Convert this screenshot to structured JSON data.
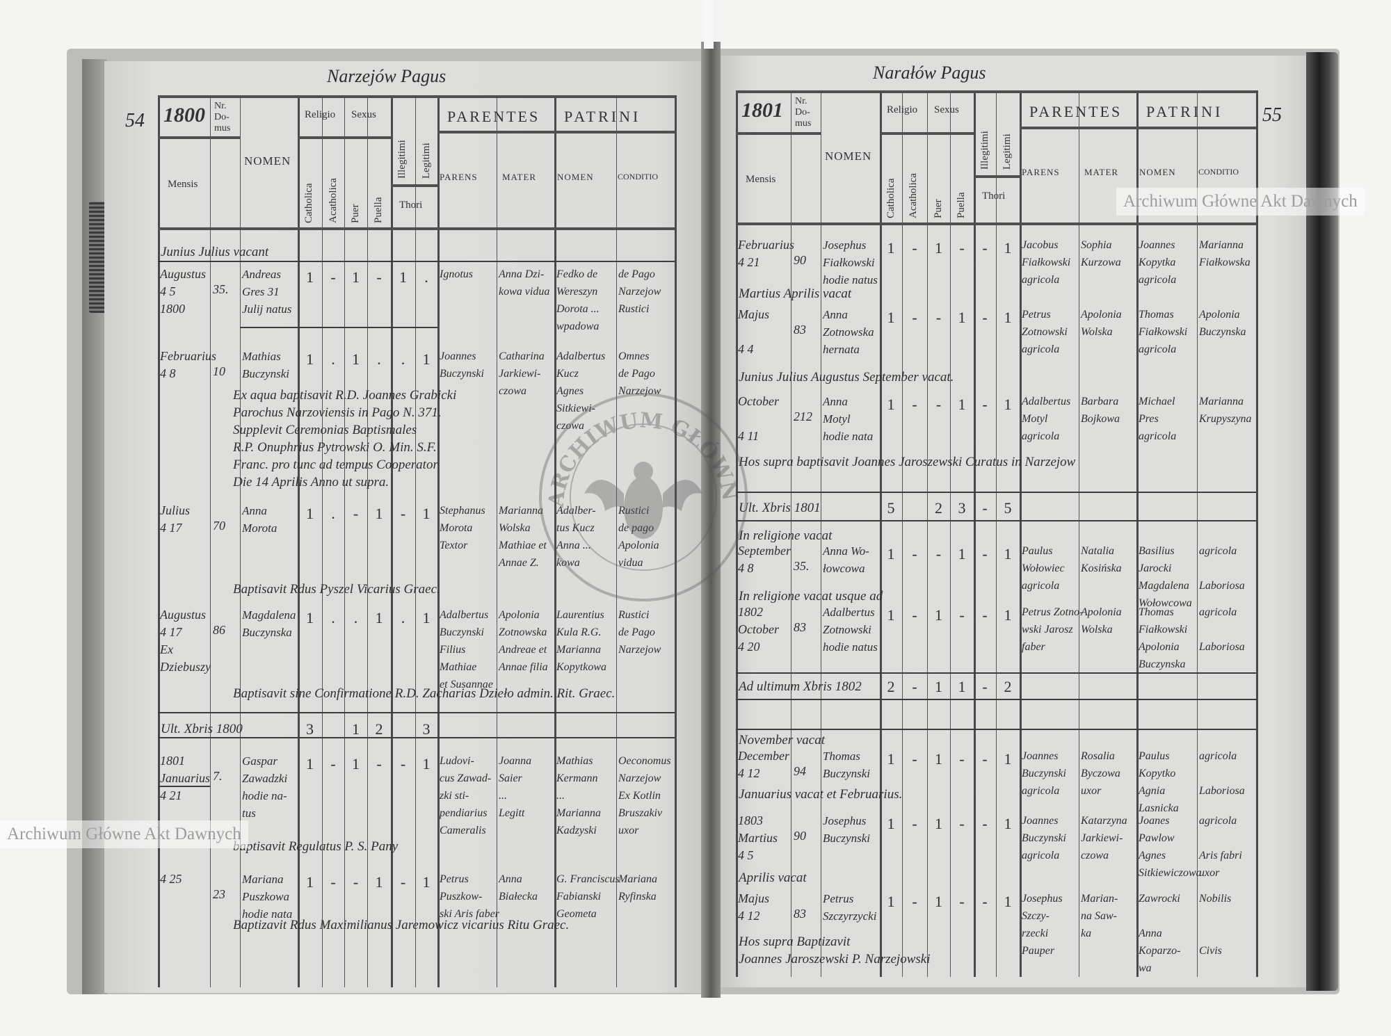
{
  "watermark": "Archiwum Główne Akt Dawnych",
  "stamp_text": "ARCHIWUM GŁÓWNE AKT DAWNYCH",
  "header_labels": {
    "nr_domus": "Nr. Do- mus",
    "mensis": "Mensis",
    "nomen": "NOMEN",
    "religio": "Religio",
    "sexus": "Sexus",
    "catholica": "Catholica",
    "acatholica": "Acatholica",
    "puer": "Puer",
    "puella": "Puella",
    "illegitimi": "Illegitimi",
    "legitimi": "Legitimi",
    "thori": "Thori",
    "parentes": "PARENTES",
    "patrini": "PATRINI",
    "parens": "PARENS",
    "mater": "MATER",
    "patrini_nomen": "NOMEN",
    "conditio": "CONDITIO"
  },
  "left_page": {
    "page_number": "54",
    "heading": "Narzejów Pagus",
    "year": "1800",
    "entries": [
      {
        "type": "note",
        "text": "Junius Julius vacant"
      },
      {
        "type": "row",
        "mensis": "Augustus\n4 5\n1800",
        "nr": "35.",
        "nomen": "Andreas\nGres 31\nJulij natus",
        "marks": [
          "1",
          "-",
          "1",
          "-",
          "1",
          "."
        ],
        "parens": "Ignotus",
        "mater": "Anna Dzi-\nkowa vidua",
        "patrini_nomen": "Fedko de\nWereszyn\nDorota ...\nwpadowa",
        "conditio": "de Pago\nNarzejow\nRustici"
      },
      {
        "type": "row",
        "mensis": "Februarius\n4 8",
        "nr": "10",
        "nomen": "Mathias\nBuczynski",
        "marks": [
          "1",
          ".",
          "1",
          ".",
          ".",
          "1"
        ],
        "parens": "Joannes\nBuczynski",
        "mater": "Catharina\nJarkiewi-\nczowa",
        "patrini_nomen": "Adalbertus\nKucz\nAgnes\nSitkiewi-\nczowa",
        "conditio": "Omnes\nde Pago\nNarzejow"
      },
      {
        "type": "note",
        "text": "Ex aqua baptisavit R.D. Joannes Grabicki\nParochus Narzoviensis in Pago N. 371.\nSupplevit Ceremonias Baptismales\nR.P. Onuphrius Pytrowski O. Min. S.F.\nFranc. pro tunc ad tempus Cooperator\nDie 14 Aprilis Anno ut supra."
      },
      {
        "type": "row",
        "mensis": "Julius\n4 17",
        "nr": "70",
        "nomen": "Anna\nMorota",
        "marks": [
          "1",
          ".",
          "-",
          "1",
          "-",
          "1"
        ],
        "parens": "Stephanus\nMorota\nTextor",
        "mater": "Marianna\nWolska\nMathiae et\nAnnae Z.",
        "patrini_nomen": "Adalber-\ntus Kucz\nAnna ...\nkowa",
        "conditio": "Rustici\nde pago\nApolonia\nvidua"
      },
      {
        "type": "note",
        "text": "Baptisavit Rdus Pyszel Vicarius Graec."
      },
      {
        "type": "row",
        "mensis": "Augustus\n4 17\nEx Dziebuszy",
        "nr": "86",
        "nomen": "Magdalena\nBuczynska",
        "marks": [
          "1",
          ".",
          ".",
          "1",
          ".",
          "1"
        ],
        "parens": "Adalbertus\nBuczynski\nFilius Mathiae\net Susannae",
        "mater": "Apolonia\nZotnowska\nAndreae et\nAnnae filia",
        "patrini_nomen": "Laurentius\nKula R.G.\nMarianna\nKopytkowa",
        "conditio": "Rustici\nde Pago\nNarzejow"
      },
      {
        "type": "note",
        "text": "Baptisavit sine Confirmatione R.D. Zacharias Dzieło admin. Rit. Graec."
      },
      {
        "type": "summary",
        "label": "Ult. Xbris 1800",
        "marks": [
          "3",
          "",
          "1",
          "2",
          "",
          "3"
        ]
      },
      {
        "type": "row",
        "mensis": "1801\nJanuarius\n4 21",
        "nr": "7.",
        "nomen": "Gaspar\nZawadzki\nhodie na-\ntus",
        "marks": [
          "1",
          "-",
          "1",
          "-",
          "-",
          "1"
        ],
        "parens": "Ludovi-\ncus Zawad-\nzki sti-\npendiarius\nCameralis",
        "mater": "Joanna\nSaier\n...\nLegitt",
        "patrini_nomen": "Mathias\nKermann\n...\nMarianna\nKadzyski",
        "conditio": "Oeconomus\nNarzejow\nEx Kotlin\nBruszakiv\nuxor"
      },
      {
        "type": "note",
        "text": "baptisavit Regulatus  P. S. Pany"
      },
      {
        "type": "row",
        "mensis": "4 25",
        "nr": "23",
        "nomen": "Mariana\nPuszkowa\nhodie nata",
        "marks": [
          "1",
          "-",
          "-",
          "1",
          "-",
          "1"
        ],
        "parens": "Petrus\nPuszkow-\nski Aris faber",
        "mater": "Anna\nBiałecka",
        "patrini_nomen": "G. Franciscus\nFabianski\nGeometa",
        "conditio": "Mariana\nRyfinska"
      },
      {
        "type": "note",
        "text": "Baptizavit Rdus Maximilianus Jaremowicz vicarius Ritu Graec."
      }
    ]
  },
  "right_page": {
    "page_number": "55",
    "heading": "Narałów Pagus",
    "year": "1801",
    "entries": [
      {
        "type": "row",
        "mensis": "Februarius\n4 21",
        "nr": "90",
        "nomen": "Josephus\nFiałkowski\nhodie natus",
        "marks": [
          "1",
          "-",
          "1",
          "-",
          "-",
          "1"
        ],
        "parens": "Jacobus\nFiałkowski\nagricola",
        "mater": "Sophia\nKurzowa",
        "patrini_nomen": "Joannes\nKopytka\nagricola",
        "conditio": "Marianna\nFiałkowska"
      },
      {
        "type": "note",
        "text": "Martius Aprilis vacat"
      },
      {
        "type": "row",
        "mensis": "Majus\n\n4 4",
        "nr": "83",
        "nomen": "Anna\nZotnowska\nhernata",
        "marks": [
          "1",
          "-",
          "-",
          "1",
          "-",
          "1"
        ],
        "parens": "Petrus\nZotnowski\nagricola",
        "mater": "Apolonia\nWolska",
        "patrini_nomen": "Thomas\nFiałkowski\nagricola",
        "conditio": "Apolonia\nBuczynska"
      },
      {
        "type": "note",
        "text": "Junius Julius Augustus September vacat."
      },
      {
        "type": "row",
        "mensis": "October\n\n4 11",
        "nr": "212",
        "nomen": "Anna\nMotyl\nhodie nata",
        "marks": [
          "1",
          "-",
          "-",
          "1",
          "-",
          "1"
        ],
        "parens": "Adalbertus\nMotyl\nagricola",
        "mater": "Barbara\nBojkowa",
        "patrini_nomen": "Michael\nPres\nagricola",
        "conditio": "Marianna\nKrupyszyna"
      },
      {
        "type": "note",
        "text": "Hos supra baptisavit Joannes Jaroszewski Curatus in Narzejow"
      },
      {
        "type": "summary",
        "label": "Ult. Xbris 1801",
        "marks": [
          "5",
          "",
          "2",
          "3",
          "-",
          "5"
        ]
      },
      {
        "type": "note",
        "text": "In religione vacat"
      },
      {
        "type": "row",
        "mensis": "September\n4 8",
        "nr": "35.",
        "nomen": "Anna Wo-\nłowcowa",
        "marks": [
          "1",
          "-",
          "-",
          "1",
          "-",
          "1"
        ],
        "parens": "Paulus\nWołowiec\nagricola",
        "mater": "Natalia\nKosińska",
        "patrini_nomen": "Basilius\nJarocki\nMagdalena\nWołowcowa",
        "conditio": "agricola\n\nLaboriosa"
      },
      {
        "type": "note",
        "text": "In religione    vacat usque ad"
      },
      {
        "type": "row",
        "mensis": "1802\nOctober\n4 20",
        "nr": "83",
        "nomen": "Adalbertus\nZotnowski\nhodie natus",
        "marks": [
          "1",
          "-",
          "1",
          "-",
          "-",
          "1"
        ],
        "parens": "Petrus Zotno-\nwski Jarosz\nfaber",
        "mater": "Apolonia\nWolska",
        "patrini_nomen": "Thomas\nFiałkowski\nApolonia\nBuczynska",
        "conditio": "agricola\n\nLaboriosa"
      },
      {
        "type": "summary",
        "label": "Ad ultimum Xbris 1802",
        "marks": [
          "2",
          "-",
          "1",
          "1",
          "-",
          "2"
        ]
      },
      {
        "type": "note",
        "text": "November vacat"
      },
      {
        "type": "row",
        "mensis": "December\n4 12",
        "nr": "94",
        "nomen": "Thomas\nBuczynski",
        "marks": [
          "1",
          "-",
          "1",
          "-",
          "-",
          "1"
        ],
        "parens": "Joannes\nBuczynski\nagricola",
        "mater": "Rosalia\nByczowa\nuxor",
        "patrini_nomen": "Paulus\nKopytko\nAgnia\nLasnicka",
        "conditio": "agricola\n\nLaboriosa"
      },
      {
        "type": "note",
        "text": "Januarius vacat et Februarius."
      },
      {
        "type": "row",
        "mensis": "1803\nMartius\n4 5",
        "nr": "90",
        "nomen": "Josephus\nBuczynski",
        "marks": [
          "1",
          "-",
          "1",
          "-",
          "-",
          "1"
        ],
        "parens": "Joannes\nBuczynski\nagricola",
        "mater": "Katarzyna\nJarkiewi-\nczowa",
        "patrini_nomen": "Joanes\nPawlow\nAgnes\nSitkiewiczowa",
        "conditio": "agricola\n\nAris fabri\nuxor"
      },
      {
        "type": "note",
        "text": "Aprilis vacat"
      },
      {
        "type": "row",
        "mensis": "Majus\n4 12",
        "nr": "83",
        "nomen": "Petrus\nSzczyrzycki",
        "marks": [
          "1",
          "-",
          "1",
          "-",
          "-",
          "1"
        ],
        "parens": "Josephus\nSzczy-\nrzecki\nPauper",
        "mater": "Marian-\nna Saw-\nka",
        "patrini_nomen": "Zawrocki\n\nAnna\nKoparzo-\nwa",
        "conditio": "Nobilis\n\n\nCivis"
      },
      {
        "type": "note",
        "text": "Hos supra   Baptizavit\nJoannes   Jaroszewski P. Narzejowski"
      }
    ]
  }
}
